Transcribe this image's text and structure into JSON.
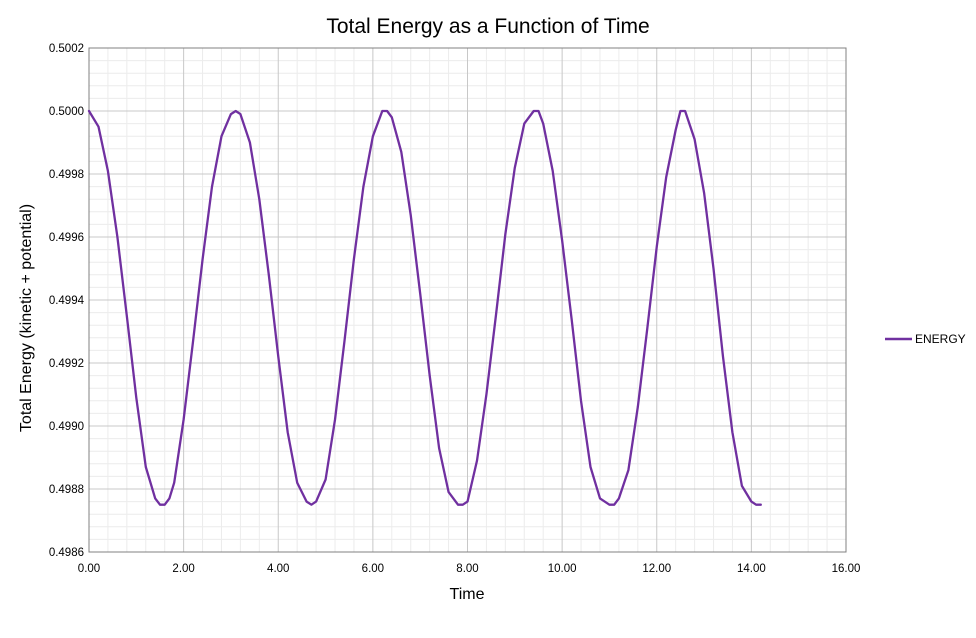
{
  "chart_data": {
    "type": "line",
    "title": "Total Energy as a Function of Time",
    "xlabel": "Time",
    "ylabel": "Total Energy (kinetic + potential)",
    "xlim": [
      0,
      16
    ],
    "ylim": [
      0.4986,
      0.5002
    ],
    "x_ticks": [
      "0.00",
      "2.00",
      "4.00",
      "6.00",
      "8.00",
      "10.00",
      "12.00",
      "14.00",
      "16.00"
    ],
    "y_ticks": [
      "0.4986",
      "0.4988",
      "0.4990",
      "0.4992",
      "0.4994",
      "0.4996",
      "0.4998",
      "0.5000",
      "0.5002"
    ],
    "grid": true,
    "legend": "right",
    "series": [
      {
        "name": "ENERGY",
        "color": "#7030A0",
        "x": [
          0.0,
          0.2,
          0.4,
          0.6,
          0.8,
          1.0,
          1.2,
          1.4,
          1.5,
          1.6,
          1.7,
          1.8,
          2.0,
          2.2,
          2.4,
          2.6,
          2.8,
          3.0,
          3.1,
          3.2,
          3.4,
          3.6,
          3.8,
          4.0,
          4.2,
          4.4,
          4.6,
          4.7,
          4.8,
          5.0,
          5.2,
          5.4,
          5.6,
          5.8,
          6.0,
          6.2,
          6.3,
          6.4,
          6.6,
          6.8,
          7.0,
          7.2,
          7.4,
          7.6,
          7.8,
          7.9,
          8.0,
          8.2,
          8.4,
          8.6,
          8.8,
          9.0,
          9.2,
          9.4,
          9.5,
          9.6,
          9.8,
          10.0,
          10.2,
          10.4,
          10.6,
          10.8,
          11.0,
          11.1,
          11.2,
          11.4,
          11.6,
          11.8,
          12.0,
          12.2,
          12.4,
          12.5,
          12.6,
          12.8,
          13.0,
          13.2,
          13.4,
          13.6,
          13.8,
          14.0,
          14.1,
          14.2
        ],
        "y": [
          0.5,
          0.49995,
          0.49981,
          0.4996,
          0.49935,
          0.49909,
          0.49887,
          0.49877,
          0.49875,
          0.49875,
          0.49877,
          0.49882,
          0.49902,
          0.49927,
          0.49953,
          0.49976,
          0.49992,
          0.49999,
          0.5,
          0.49999,
          0.4999,
          0.49972,
          0.49948,
          0.49922,
          0.49898,
          0.49882,
          0.49876,
          0.49875,
          0.49876,
          0.49883,
          0.49902,
          0.49927,
          0.49953,
          0.49976,
          0.49992,
          0.5,
          0.5,
          0.49998,
          0.49987,
          0.49967,
          0.49942,
          0.49916,
          0.49893,
          0.49879,
          0.49875,
          0.49875,
          0.49876,
          0.49889,
          0.4991,
          0.49935,
          0.49961,
          0.49982,
          0.49996,
          0.5,
          0.5,
          0.49996,
          0.49981,
          0.49959,
          0.49934,
          0.49908,
          0.49887,
          0.49877,
          0.49875,
          0.49875,
          0.49877,
          0.49886,
          0.49906,
          0.49931,
          0.49957,
          0.49979,
          0.49994,
          0.5,
          0.5,
          0.49991,
          0.49974,
          0.4995,
          0.49922,
          0.49898,
          0.49881,
          0.49876,
          0.49875,
          0.49875
        ]
      }
    ]
  }
}
